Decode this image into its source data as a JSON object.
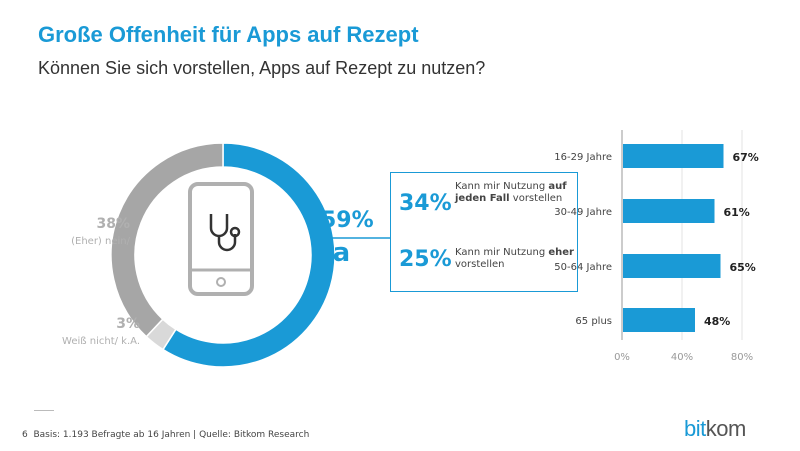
{
  "title": "Große Offenheit für Apps auf Rezept",
  "subtitle": "Können Sie sich vorstellen, Apps auf Rezept zu nutzen?",
  "chart_data": [
    {
      "type": "pie",
      "variant": "donut",
      "slices": [
        {
          "label": "Ja",
          "value": 59,
          "value_label": "59%",
          "color": "#1a9ad6"
        },
        {
          "label": "Weiß nicht/ k.A.",
          "value": 3,
          "value_label": "3%",
          "color": "#d9d9d9"
        },
        {
          "label": "(Eher) nein/",
          "value": 38,
          "value_label": "38%",
          "color": "#a6a6a6"
        }
      ],
      "center_icon": "smartphone-stethoscope-icon",
      "breakdown": [
        {
          "value_label": "34%",
          "text_pre": "Kann mir Nutzung ",
          "text_bold": "auf jeden Fall",
          "text_post": " vorstellen"
        },
        {
          "value_label": "25%",
          "text_pre": "Kann mir Nutzung ",
          "text_bold": "eher",
          "text_post": " vorstellen"
        }
      ]
    },
    {
      "type": "bar",
      "orientation": "horizontal",
      "categories": [
        "16-29 Jahre",
        "30-49 Jahre",
        "50-64 Jahre",
        "65 plus"
      ],
      "values": [
        67,
        61,
        65,
        48
      ],
      "value_labels": [
        "67%",
        "61%",
        "65%",
        "48%"
      ],
      "xlim": [
        0,
        80
      ],
      "xticks": [
        "0%",
        "40%",
        "80%"
      ],
      "grid": true,
      "color": "#1a9ad6"
    }
  ],
  "footer": {
    "page": "6",
    "source": "Basis: 1.193 Befragte ab 16 Jahren | Quelle: Bitkom Research"
  },
  "logo": {
    "part1": "bit",
    "part2": "kom"
  }
}
